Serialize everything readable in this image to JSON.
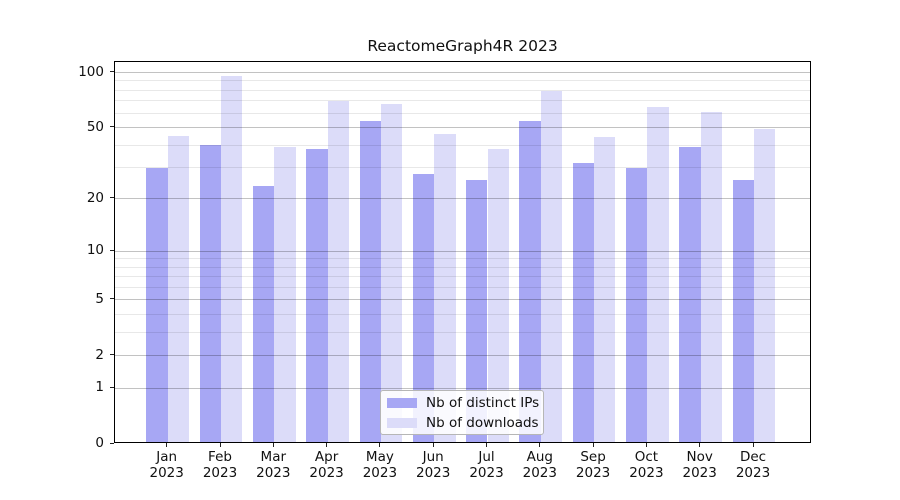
{
  "title": "ReactomeGraph4R 2023",
  "chart_data": {
    "type": "bar",
    "months": [
      "Jan",
      "Feb",
      "Mar",
      "Apr",
      "May",
      "Jun",
      "Jul",
      "Aug",
      "Sep",
      "Oct",
      "Nov",
      "Dec"
    ],
    "year": "2023",
    "categories": [
      "Jan 2023",
      "Feb 2023",
      "Mar 2023",
      "Apr 2023",
      "May 2023",
      "Jun 2023",
      "Jul 2023",
      "Aug 2023",
      "Sep 2023",
      "Oct 2023",
      "Nov 2023",
      "Dec 2023"
    ],
    "series": [
      {
        "name": "Nb of distinct IPs",
        "color": "#a7a7f4",
        "values": [
          29,
          39,
          23,
          37,
          53,
          27,
          25,
          53,
          31,
          29,
          38,
          25
        ]
      },
      {
        "name": "Nb of downloads",
        "color": "#dcdcf9",
        "values": [
          44,
          93,
          38,
          68,
          66,
          45,
          37,
          77,
          43,
          63,
          59,
          48
        ]
      }
    ],
    "yscale": "log1p",
    "ylim": [
      0,
      115
    ],
    "yticks_labeled": [
      0,
      1,
      2,
      5,
      10,
      20,
      50,
      100
    ],
    "yticks_minor": [
      3,
      4,
      6,
      7,
      8,
      9,
      30,
      40,
      60,
      70,
      80,
      90
    ],
    "grid": true,
    "legend_position": "lower center",
    "xlabel": "",
    "ylabel": ""
  }
}
